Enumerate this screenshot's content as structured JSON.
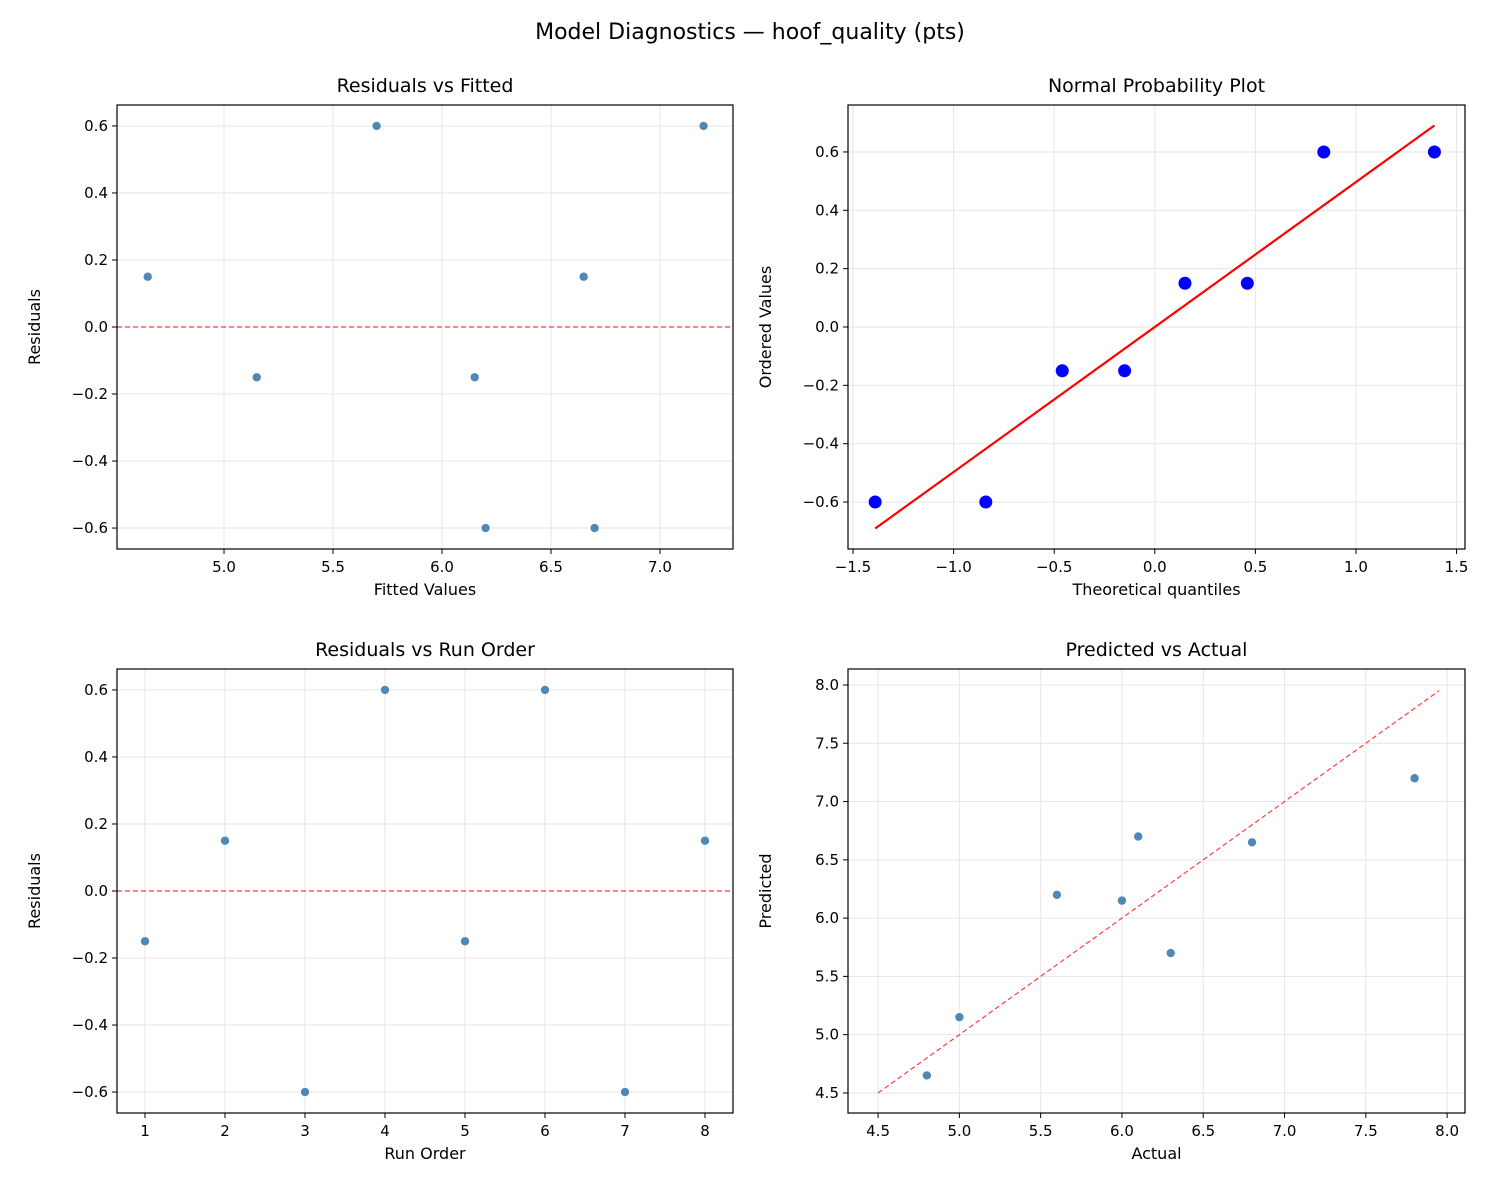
{
  "title": "Model Diagnostics — hoof_quality (pts)",
  "colors": {
    "point": "#4682b4",
    "qq_point": "#0000ff",
    "qq_line": "#ff0000",
    "ref_line": "#ff0000",
    "grid": "#e6e6e6"
  },
  "chart_data": [
    {
      "type": "scatter",
      "title": "Residuals vs Fitted",
      "xlabel": "Fitted Values",
      "ylabel": "Residuals",
      "xlim": [
        4.509,
        7.335
      ],
      "ylim": [
        -0.6625,
        0.6625
      ],
      "xticks": [
        {
          "v": 5.0,
          "label": "5.0"
        },
        {
          "v": 5.5,
          "label": "5.5"
        },
        {
          "v": 6.0,
          "label": "6.0"
        },
        {
          "v": 6.5,
          "label": "6.5"
        },
        {
          "v": 7.0,
          "label": "7.0"
        }
      ],
      "yticks": [
        {
          "v": -0.6,
          "label": "−0.6"
        },
        {
          "v": -0.4,
          "label": "−0.4"
        },
        {
          "v": -0.2,
          "label": "−0.2"
        },
        {
          "v": 0.0,
          "label": "0.0"
        },
        {
          "v": 0.2,
          "label": "0.2"
        },
        {
          "v": 0.4,
          "label": "0.4"
        },
        {
          "v": 0.6,
          "label": "0.6"
        }
      ],
      "x": [
        4.65,
        5.15,
        5.7,
        6.15,
        6.2,
        6.65,
        6.7,
        7.2
      ],
      "y": [
        0.15,
        -0.15,
        0.6,
        -0.15,
        -0.6,
        0.15,
        -0.6,
        0.6
      ],
      "hline": 0,
      "grid": true
    },
    {
      "type": "scatter",
      "title": "Normal Probability Plot",
      "xlabel": "Theoretical quantiles",
      "ylabel": "Ordered Values",
      "xlim": [
        -1.525,
        1.542
      ],
      "ylim": [
        -0.761,
        0.761
      ],
      "xticks": [
        {
          "v": -1.5,
          "label": "−1.5"
        },
        {
          "v": -1.0,
          "label": "−1.0"
        },
        {
          "v": -0.5,
          "label": "−0.5"
        },
        {
          "v": 0.0,
          "label": "0.0"
        },
        {
          "v": 0.5,
          "label": "0.5"
        },
        {
          "v": 1.0,
          "label": "1.0"
        },
        {
          "v": 1.5,
          "label": "1.5"
        }
      ],
      "yticks": [
        {
          "v": -0.6,
          "label": "−0.6"
        },
        {
          "v": -0.4,
          "label": "−0.4"
        },
        {
          "v": -0.2,
          "label": "−0.2"
        },
        {
          "v": 0.0,
          "label": "0.0"
        },
        {
          "v": 0.2,
          "label": "0.2"
        },
        {
          "v": 0.4,
          "label": "0.4"
        },
        {
          "v": 0.6,
          "label": "0.6"
        }
      ],
      "x": [
        -1.39,
        -0.84,
        -0.46,
        -0.15,
        0.15,
        0.46,
        0.84,
        1.39
      ],
      "y": [
        -0.6,
        -0.6,
        -0.15,
        -0.15,
        0.15,
        0.15,
        0.6,
        0.6
      ],
      "fit_line": {
        "slope": 0.497,
        "intercept": 0.0,
        "x_range": [
          -1.39,
          1.39
        ]
      },
      "grid": true
    },
    {
      "type": "scatter",
      "title": "Residuals vs Run Order",
      "xlabel": "Run Order",
      "ylabel": "Residuals",
      "xlim": [
        0.65,
        8.35
      ],
      "ylim": [
        -0.6625,
        0.6625
      ],
      "xticks": [
        {
          "v": 1,
          "label": "1"
        },
        {
          "v": 2,
          "label": "2"
        },
        {
          "v": 3,
          "label": "3"
        },
        {
          "v": 4,
          "label": "4"
        },
        {
          "v": 5,
          "label": "5"
        },
        {
          "v": 6,
          "label": "6"
        },
        {
          "v": 7,
          "label": "7"
        },
        {
          "v": 8,
          "label": "8"
        }
      ],
      "yticks": [
        {
          "v": -0.6,
          "label": "−0.6"
        },
        {
          "v": -0.4,
          "label": "−0.4"
        },
        {
          "v": -0.2,
          "label": "−0.2"
        },
        {
          "v": 0.0,
          "label": "0.0"
        },
        {
          "v": 0.2,
          "label": "0.2"
        },
        {
          "v": 0.4,
          "label": "0.4"
        },
        {
          "v": 0.6,
          "label": "0.6"
        }
      ],
      "x": [
        1,
        2,
        3,
        4,
        5,
        6,
        7,
        8
      ],
      "y": [
        -0.15,
        0.15,
        -0.6,
        0.6,
        -0.15,
        0.6,
        -0.6,
        0.15
      ],
      "hline": 0,
      "grid": true
    },
    {
      "type": "scatter",
      "title": "Predicted vs Actual",
      "xlabel": "Actual",
      "ylabel": "Predicted",
      "xlim": [
        4.315,
        8.11
      ],
      "ylim": [
        4.328,
        8.137
      ],
      "xticks": [
        {
          "v": 4.5,
          "label": "4.5"
        },
        {
          "v": 5.0,
          "label": "5.0"
        },
        {
          "v": 5.5,
          "label": "5.5"
        },
        {
          "v": 6.0,
          "label": "6.0"
        },
        {
          "v": 6.5,
          "label": "6.5"
        },
        {
          "v": 7.0,
          "label": "7.0"
        },
        {
          "v": 7.5,
          "label": "7.5"
        },
        {
          "v": 8.0,
          "label": "8.0"
        }
      ],
      "yticks": [
        {
          "v": 4.5,
          "label": "4.5"
        },
        {
          "v": 5.0,
          "label": "5.0"
        },
        {
          "v": 5.5,
          "label": "5.5"
        },
        {
          "v": 6.0,
          "label": "6.0"
        },
        {
          "v": 6.5,
          "label": "6.5"
        },
        {
          "v": 7.0,
          "label": "7.0"
        },
        {
          "v": 7.5,
          "label": "7.5"
        },
        {
          "v": 8.0,
          "label": "8.0"
        }
      ],
      "x": [
        4.8,
        5.0,
        5.6,
        6.0,
        6.1,
        6.3,
        6.8,
        7.8
      ],
      "y": [
        4.65,
        5.15,
        6.2,
        6.15,
        6.7,
        5.7,
        6.65,
        7.2
      ],
      "diag_line": {
        "range": [
          4.5,
          7.95
        ]
      },
      "grid": true
    }
  ]
}
